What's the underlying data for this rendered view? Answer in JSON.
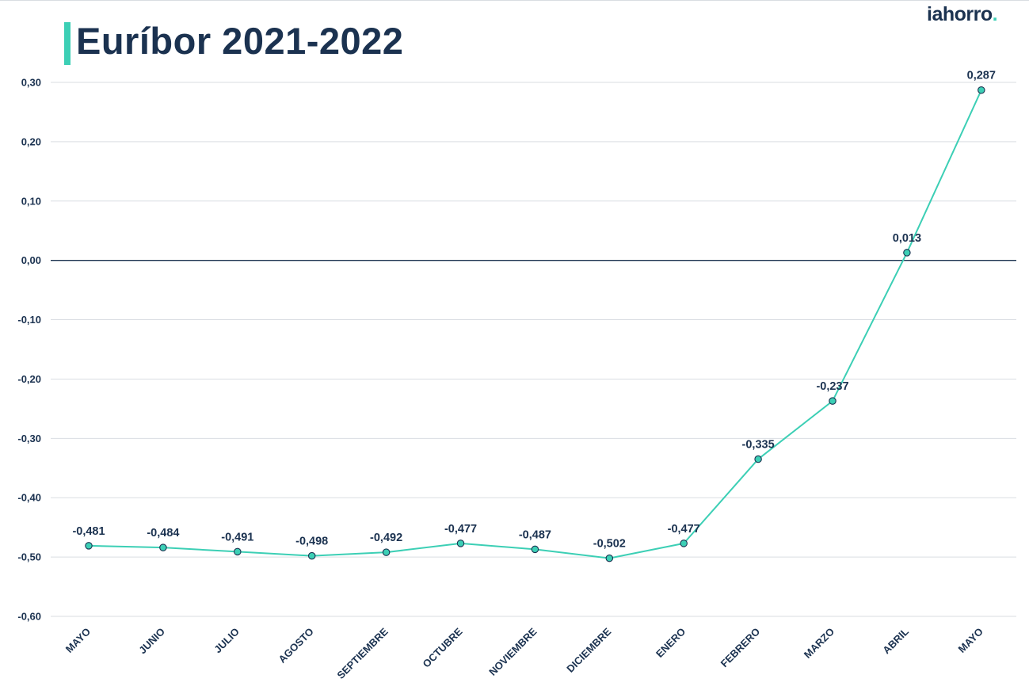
{
  "title": "Euríbor 2021-2022",
  "logo": {
    "text": "iahorro",
    "dot": "."
  },
  "colors": {
    "line": "#3ccfb5",
    "text": "#1b3250",
    "grid": "#d9dde2",
    "zero_line": "#1b3250"
  },
  "chart_data": {
    "type": "line",
    "title": "Euríbor 2021-2022",
    "xlabel": "",
    "ylabel": "",
    "ylim": [
      -0.6,
      0.3
    ],
    "yticks": [
      0.3,
      0.2,
      0.1,
      0.0,
      -0.1,
      -0.2,
      -0.3,
      -0.4,
      -0.5,
      -0.6
    ],
    "ytick_labels": [
      "0,30",
      "0,20",
      "0,10",
      "0,00",
      "-0,10",
      "-0,20",
      "-0,30",
      "-0,40",
      "-0,50",
      "-0,60"
    ],
    "grid": true,
    "categories": [
      "MAYO",
      "JUNIO",
      "JULIO",
      "AGOSTO",
      "SEPTIEMBRE",
      "OCTUBRE",
      "NOVIEMBRE",
      "DICIEMBRE",
      "ENERO",
      "FEBRERO",
      "MARZO",
      "ABRIL",
      "MAYO"
    ],
    "values": [
      -0.481,
      -0.484,
      -0.491,
      -0.498,
      -0.492,
      -0.477,
      -0.487,
      -0.502,
      -0.477,
      -0.335,
      -0.237,
      0.013,
      0.287
    ],
    "value_labels": [
      "-0,481",
      "-0,484",
      "-0,491",
      "-0,498",
      "-0,492",
      "-0,477",
      "-0,487",
      "-0,502",
      "-0,477",
      "-0,335",
      "-0,237",
      "0,013",
      "0,287"
    ]
  }
}
